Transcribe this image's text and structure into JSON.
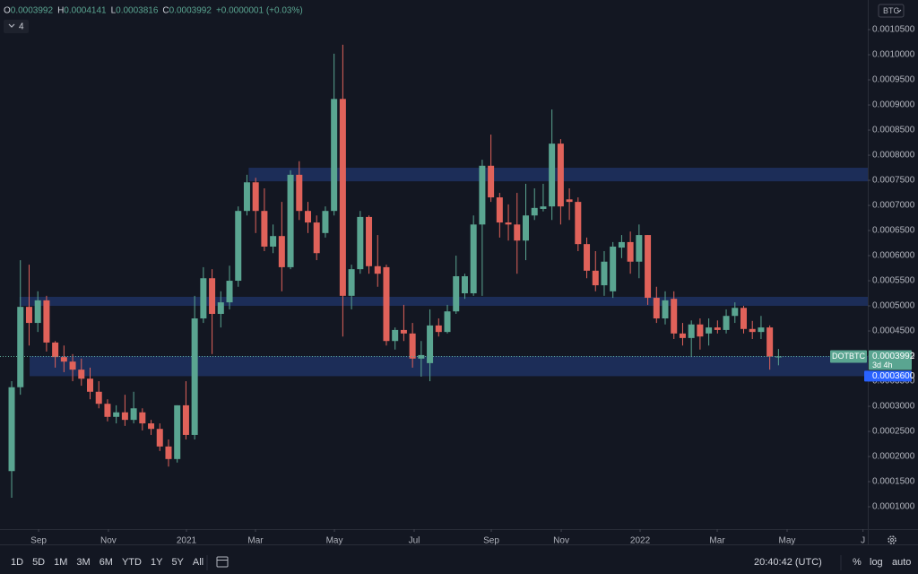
{
  "chart_data": {
    "type": "candlestick",
    "symbol": "DOTBTC",
    "countdown": "3d 4h",
    "interval": "4",
    "currency": "BTC",
    "legend": {
      "o": "O",
      "h": "H",
      "l": "L",
      "c": "C",
      "change": "+0.0000001 (+0.03%)"
    },
    "up_color": "#5aa591",
    "down_color": "#e0625a",
    "zone_color": "#1f3161",
    "open": [
      0.000171,
      0.000338,
      0.000498,
      0.000466,
      0.000511,
      0.000427,
      0.000398,
      0.000389,
      0.000373,
      0.000355,
      0.000329,
      0.000305,
      0.000279,
      0.000288,
      0.000273,
      0.000288,
      0.000266,
      0.000255,
      0.00022,
      0.000195,
      0.000302,
      0.000243,
      0.000475,
      0.000555,
      0.000484,
      0.000507,
      0.00055,
      0.000689,
      0.000746,
      0.000689,
      0.000618,
      0.000639,
      0.000577,
      0.000761,
      0.000689,
      0.000666,
      0.000645,
      0.000689,
      0.000912,
      0.00052,
      0.000573,
      0.000677,
      0.000579,
      0.000577,
      0.00043,
      0.000452,
      0.000445,
      0.000395,
      0.000386,
      0.000461,
      0.000448,
      0.000489,
      0.000525,
      0.000525,
      0.000662,
      0.000779,
      0.000716,
      0.000666,
      0.000662,
      0.00063,
      0.00068,
      0.000693,
      0.000698,
      0.000823,
      0.000712,
      0.000707,
      0.000623,
      0.00057,
      0.000541,
      0.000529,
      0.000616,
      0.000627,
      0.000588,
      0.000641,
      0.000516,
      0.000475,
      0.000514,
      0.000445,
      0.000436,
      0.000463,
      0.000445,
      0.000457,
      0.000452,
      0.00048,
      0.000496,
      0.000454,
      0.000448,
      0.000457,
      0.0003992
    ],
    "high": [
      0.00035,
      0.000591,
      0.000582,
      0.000529,
      0.00052,
      0.00043,
      0.000421,
      0.000404,
      0.000395,
      0.000377,
      0.00035,
      0.000314,
      0.000302,
      0.000323,
      0.000329,
      0.000296,
      0.000273,
      0.000266,
      0.000234,
      0.000302,
      0.00035,
      0.00052,
      0.000577,
      0.000573,
      0.000529,
      0.00058,
      0.000698,
      0.000761,
      0.000755,
      0.000734,
      0.000662,
      0.000707,
      0.00077,
      0.000788,
      0.000707,
      0.00068,
      0.000698,
      0.001002,
      0.00102,
      0.000582,
      0.000689,
      0.00068,
      0.000641,
      0.000582,
      0.000457,
      0.000502,
      0.000466,
      0.00043,
      0.000493,
      0.000475,
      0.000502,
      0.0006,
      0.000564,
      0.00068,
      0.000791,
      0.000841,
      0.000725,
      0.000702,
      0.000725,
      0.000743,
      0.000734,
      0.000743,
      0.000891,
      0.000832,
      0.000734,
      0.000716,
      0.000636,
      0.000609,
      0.000609,
      0.000627,
      0.000641,
      0.000648,
      0.000662,
      0.000641,
      0.000538,
      0.000529,
      0.000529,
      0.000466,
      0.000471,
      0.000475,
      0.000475,
      0.000471,
      0.000493,
      0.000507,
      0.0005,
      0.00047,
      0.00048,
      0.000461,
      0.0004141
    ],
    "low": [
      0.000118,
      0.000323,
      0.000421,
      0.000448,
      0.000409,
      0.000377,
      0.000368,
      0.00035,
      0.000341,
      0.000314,
      0.000296,
      0.00027,
      0.000266,
      0.000261,
      0.000266,
      0.000252,
      0.000243,
      0.000211,
      0.00018,
      0.000188,
      0.000234,
      0.000234,
      0.000466,
      0.000404,
      0.000457,
      0.000493,
      0.000538,
      0.00068,
      0.000645,
      0.000609,
      0.000605,
      0.000529,
      0.000573,
      0.000671,
      0.000645,
      0.000591,
      0.000636,
      0.00068,
      0.000439,
      0.000493,
      0.000564,
      0.000564,
      0.000538,
      0.000421,
      0.000413,
      0.00043,
      0.000377,
      0.000359,
      0.00035,
      0.000439,
      0.000445,
      0.000484,
      0.000514,
      0.00052,
      0.00052,
      0.000707,
      0.000636,
      0.00063,
      0.000564,
      0.000591,
      0.000671,
      0.000688,
      0.000671,
      0.000662,
      0.000671,
      0.000609,
      0.000555,
      0.000529,
      0.00052,
      0.000516,
      0.000595,
      0.000564,
      0.000555,
      0.000502,
      0.000466,
      0.000463,
      0.000434,
      0.000421,
      0.000398,
      0.000413,
      0.000421,
      0.000445,
      0.000445,
      0.000466,
      0.000445,
      0.000434,
      0.000434,
      0.000373,
      0.0003816
    ],
    "close": [
      0.000338,
      0.000498,
      0.000466,
      0.000511,
      0.000427,
      0.000398,
      0.000389,
      0.000373,
      0.000355,
      0.000329,
      0.000305,
      0.000279,
      0.000288,
      0.000273,
      0.000296,
      0.000266,
      0.000255,
      0.00022,
      0.000195,
      0.000302,
      0.000243,
      0.000475,
      0.000555,
      0.000484,
      0.000507,
      0.00055,
      0.000689,
      0.000746,
      0.000689,
      0.000618,
      0.000639,
      0.000577,
      0.000761,
      0.000689,
      0.000666,
      0.000605,
      0.000689,
      0.000912,
      0.00052,
      0.000573,
      0.000677,
      0.000579,
      0.000564,
      0.00043,
      0.000452,
      0.000445,
      0.000395,
      0.000402,
      0.000461,
      0.000448,
      0.000489,
      0.000559,
      0.000559,
      0.000662,
      0.000779,
      0.000716,
      0.000666,
      0.000662,
      0.00063,
      0.00068,
      0.000695,
      0.000698,
      0.000823,
      0.000698,
      0.000707,
      0.000623,
      0.00057,
      0.000541,
      0.000588,
      0.000618,
      0.000627,
      0.000588,
      0.000641,
      0.000516,
      0.000475,
      0.000511,
      0.000445,
      0.000436,
      0.000463,
      0.000439,
      0.000457,
      0.000452,
      0.00048,
      0.000496,
      0.000454,
      0.000448,
      0.000457,
      0.000399,
      0.0003992
    ],
    "zones": [
      {
        "from": 0.000748,
        "to": 0.000775,
        "start": 27.2
      },
      {
        "from": 0.0005,
        "to": 0.000518,
        "start": 0.9
      },
      {
        "from": 0.00036,
        "to": 0.0004,
        "start": 2.06,
        "label": "0.0003600"
      }
    ],
    "xlim": [
      -1.34,
      98.25
    ],
    "xticks": [
      {
        "value": 3.09,
        "label": "Sep"
      },
      {
        "value": 11.1,
        "label": "Nov"
      },
      {
        "value": 20.06,
        "label": "2021"
      },
      {
        "value": 27.98,
        "label": "Mar"
      },
      {
        "value": 37.04,
        "label": "May"
      },
      {
        "value": 46.19,
        "label": "Jul"
      },
      {
        "value": 55.04,
        "label": "Sep"
      },
      {
        "value": 63.07,
        "label": "Nov"
      },
      {
        "value": 72.12,
        "label": "2022"
      },
      {
        "value": 80.97,
        "label": "Mar"
      },
      {
        "value": 88.99,
        "label": "May"
      },
      {
        "value": 97.7,
        "label": "J"
      }
    ],
    "ylim": [
      5.54e-05,
      0.001109
    ],
    "yticks": [
      {
        "value": 0.0001,
        "label": "0.0001000"
      },
      {
        "value": 0.00015,
        "label": "0.0001500"
      },
      {
        "value": 0.0002,
        "label": "0.0002000"
      },
      {
        "value": 0.00025,
        "label": "0.0002500"
      },
      {
        "value": 0.0003,
        "label": "0.0003000"
      },
      {
        "value": 0.00035,
        "label": "0.0003500"
      },
      {
        "value": 0.0004,
        "label": "0.0004000"
      },
      {
        "value": 0.00045,
        "label": "0.0004500"
      },
      {
        "value": 0.0005,
        "label": "0.0005000"
      },
      {
        "value": 0.00055,
        "label": "0.0005500"
      },
      {
        "value": 0.0006,
        "label": "0.0006000"
      },
      {
        "value": 0.00065,
        "label": "0.0006500"
      },
      {
        "value": 0.0007,
        "label": "0.0007000"
      },
      {
        "value": 0.00075,
        "label": "0.0007500"
      },
      {
        "value": 0.0008,
        "label": "0.0008000"
      },
      {
        "value": 0.00085,
        "label": "0.0008500"
      },
      {
        "value": 0.0009,
        "label": "0.0009000"
      },
      {
        "value": 0.00095,
        "label": "0.0009500"
      },
      {
        "value": 0.001,
        "label": "0.0010000"
      },
      {
        "value": 0.00105,
        "label": "0.0010500"
      }
    ]
  },
  "toolbar": {
    "ranges": [
      "1D",
      "5D",
      "1M",
      "3M",
      "6M",
      "YTD",
      "1Y",
      "5Y",
      "All"
    ],
    "clock": "20:40:42 (UTC)",
    "percent": "%",
    "log": "log",
    "auto": "auto"
  }
}
